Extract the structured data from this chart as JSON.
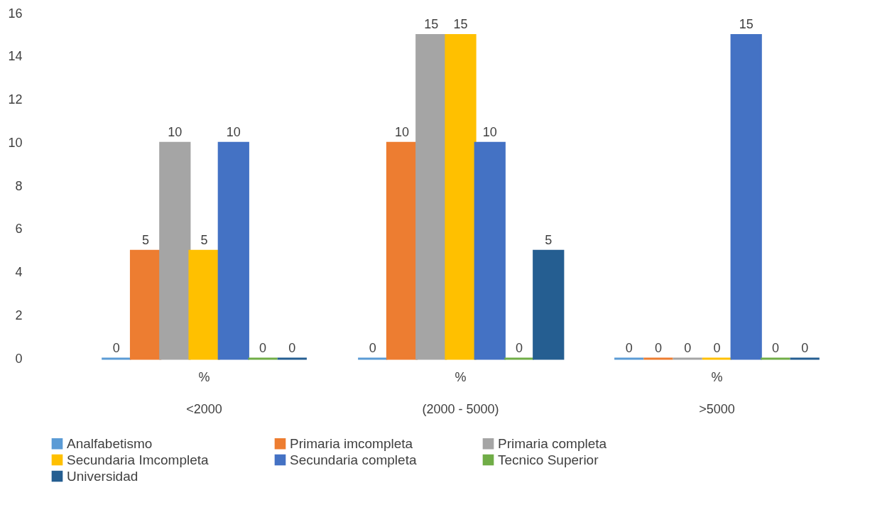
{
  "chart_data": {
    "type": "bar",
    "categories": [
      "<2000",
      "(2000 - 5000)",
      ">5000"
    ],
    "annotations": [
      "%",
      "%",
      "%"
    ],
    "series": [
      {
        "name": "Analfabetismo",
        "color": "#5b9bd5",
        "values": [
          0,
          0,
          0
        ]
      },
      {
        "name": "Primaria imcompleta",
        "color": "#ed7d31",
        "values": [
          5,
          10,
          0
        ]
      },
      {
        "name": "Primaria completa",
        "color": "#a5a5a5",
        "values": [
          10,
          15,
          0
        ]
      },
      {
        "name": "Secundaria Imcompleta",
        "color": "#ffc000",
        "values": [
          5,
          15,
          0
        ]
      },
      {
        "name": "Secundaria completa",
        "color": "#4472c4",
        "values": [
          10,
          10,
          15
        ]
      },
      {
        "name": "Tecnico Superior",
        "color": "#70ad47",
        "values": [
          0,
          0,
          0
        ]
      },
      {
        "name": "Universidad",
        "color": "#255e91",
        "values": [
          0,
          5,
          0
        ]
      }
    ],
    "ylim": [
      0,
      16
    ],
    "yticks": [
      0,
      2,
      4,
      6,
      8,
      10,
      12,
      14,
      16
    ],
    "grid": false,
    "legend": "bottom",
    "data_labels": true
  }
}
